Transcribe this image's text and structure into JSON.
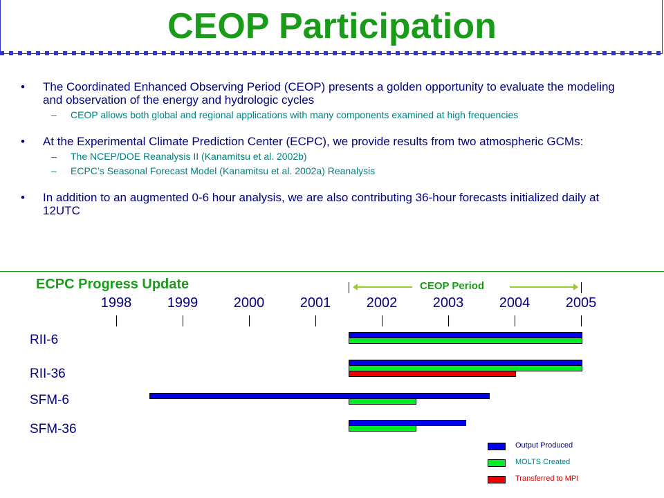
{
  "title": "CEOP Participation",
  "bullets": [
    {
      "text": "The Coordinated Enhanced Observing Period (CEOP) presents a golden opportunity to evaluate the modeling and observation of the energy and hydrologic cycles",
      "subs": [
        "CEOP allows both global and regional applications with many components examined at high frequencies"
      ]
    },
    {
      "text": "At the Experimental Climate Prediction Center (ECPC), we provide results from two atmospheric GCMs:",
      "subs": [
        "The NCEP/DOE Reanalysis II (Kanamitsu et al. 2002b)",
        "ECPC’s Seasonal Forecast Model (Kanamitsu et al. 2002a) Reanalysis"
      ]
    },
    {
      "text": "In addition to an augmented 0-6 hour analysis, we are also contributing 36-hour forecasts initialized daily at 12UTC",
      "subs": []
    }
  ],
  "progress": {
    "title": "ECPC Progress Update",
    "period_label": "CEOP Period",
    "years": [
      "1998",
      "1999",
      "2000",
      "2001",
      "2002",
      "2003",
      "2004",
      "2005"
    ],
    "rows": [
      {
        "label": "RII-6",
        "bars": [
          {
            "series": "output",
            "start": 2001.5,
            "end": 2005.0
          },
          {
            "series": "molts",
            "start": 2001.5,
            "end": 2005.0
          }
        ]
      },
      {
        "label": "RII-36",
        "bars": [
          {
            "series": "output",
            "start": 2001.5,
            "end": 2005.0
          },
          {
            "series": "molts",
            "start": 2001.5,
            "end": 2005.0
          },
          {
            "series": "mpi",
            "start": 2001.5,
            "end": 2004.0
          }
        ]
      },
      {
        "label": "SFM-6",
        "bars": [
          {
            "series": "output",
            "start": 1998.5,
            "end": 2003.6
          },
          {
            "series": "molts",
            "start": 2001.5,
            "end": 2002.5
          }
        ]
      },
      {
        "label": "SFM-36",
        "bars": [
          {
            "series": "output",
            "start": 2001.5,
            "end": 2003.25
          },
          {
            "series": "molts",
            "start": 2001.5,
            "end": 2002.5
          }
        ]
      }
    ],
    "legend": [
      {
        "key": "output",
        "label": "Output Produced",
        "color": "#0000ee",
        "text_color": "#000080"
      },
      {
        "key": "molts",
        "label": "MOLTS Created",
        "color": "#00ee22",
        "text_color": "#008080"
      },
      {
        "key": "mpi",
        "label": "Transferred to MPI",
        "color": "#ee0000",
        "text_color": "#cc0000"
      }
    ]
  }
}
